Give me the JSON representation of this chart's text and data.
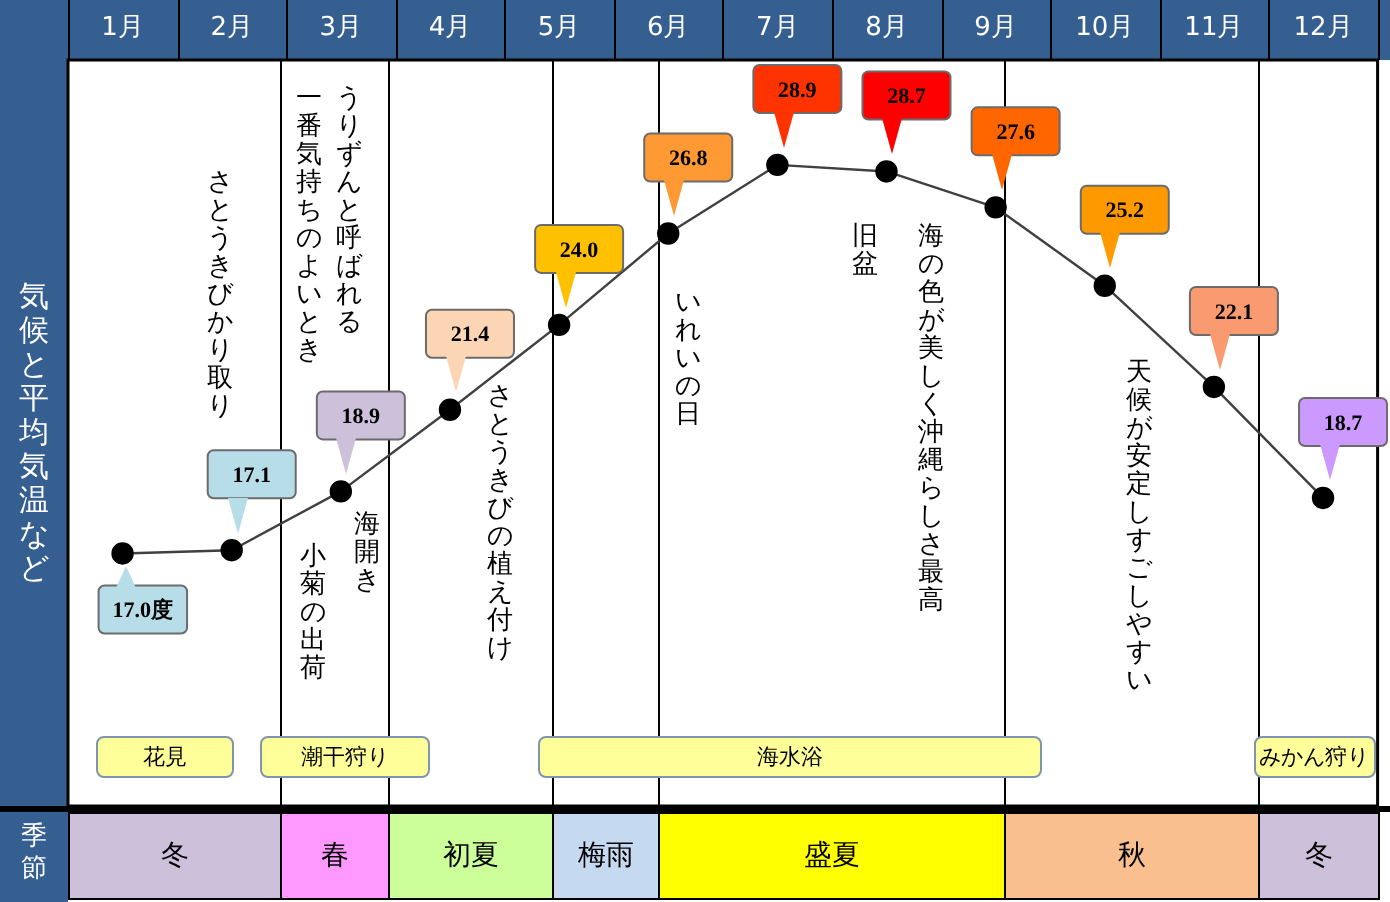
{
  "chart_data": {
    "type": "line",
    "ylabel": "気候と平均気温など",
    "categories": [
      "1月",
      "2月",
      "3月",
      "4月",
      "5月",
      "6月",
      "7月",
      "8月",
      "9月",
      "10月",
      "11月",
      "12月"
    ],
    "series": [
      {
        "color": "#404040",
        "values": [
          17.0,
          17.1,
          18.9,
          21.4,
          24.0,
          26.8,
          28.9,
          28.7,
          27.6,
          25.2,
          22.1,
          18.7
        ],
        "value_labels": [
          "17.0度",
          "17.1",
          "18.9",
          "21.4",
          "24.0",
          "26.8",
          "28.9",
          "28.7",
          "27.6",
          "25.2",
          "22.1",
          "18.7"
        ]
      }
    ],
    "marker": "circle",
    "grid": "x",
    "annotations": [
      "さとうきびかり取り",
      "うりずんと呼ばれる",
      "一番気持ちのよいとき",
      "海開き",
      "小菊の出荷",
      "さとうきびの植え付け",
      "いれいの日",
      "旧盆",
      "海の色が美しく沖縄らしさ最高",
      "天候が安定しすごしやすい",
      "花見",
      "潮干狩り",
      "海水浴",
      "みかん狩り",
      "冬",
      "春",
      "初夏",
      "梅雨",
      "盛夏",
      "秋",
      "冬",
      "季節"
    ]
  }
}
